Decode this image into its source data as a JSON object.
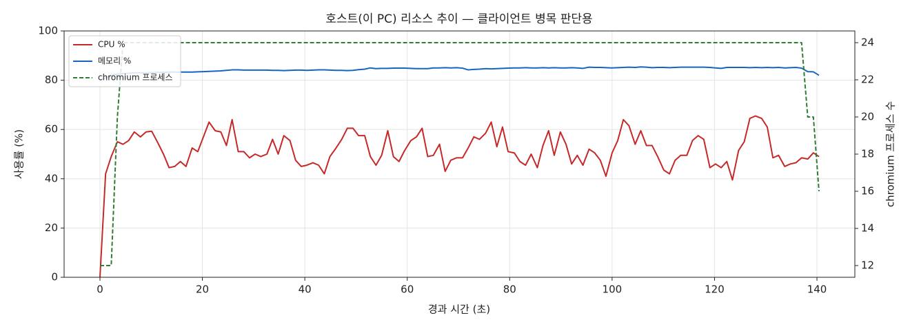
{
  "chart_data": {
    "type": "line",
    "title": "호스트(이 PC) 리소스 추이 — 클라이언트 병목 판단용",
    "xlabel": "경과 시간 (초)",
    "ylabel": "사용률 (%)",
    "y2label": "chromium 프로세스 수",
    "x": [
      0,
      1.1,
      2.2,
      3.4,
      4.5,
      5.6,
      6.7,
      7.9,
      9,
      10.1,
      11.2,
      12.4,
      13.5,
      14.6,
      15.7,
      16.8,
      18,
      19.1,
      20.2,
      21.3,
      22.5,
      23.6,
      24.7,
      25.8,
      27,
      28.1,
      29.2,
      30.3,
      31.4,
      32.6,
      33.7,
      34.8,
      35.9,
      37.1,
      38.2,
      39.3,
      40.4,
      41.6,
      42.7,
      43.8,
      44.9,
      46.1,
      47.2,
      48.3,
      49.4,
      50.5,
      51.7,
      52.8,
      53.9,
      55,
      56.2,
      57.3,
      58.4,
      59.5,
      60.7,
      61.8,
      62.9,
      64,
      65.1,
      66.3,
      67.4,
      68.5,
      69.6,
      70.8,
      71.9,
      73,
      74.1,
      75.3,
      76.4,
      77.5,
      78.6,
      79.7,
      80.9,
      82,
      83.1,
      84.2,
      85.4,
      86.5,
      87.6,
      88.7,
      89.9,
      91,
      92.1,
      93.2,
      94.3,
      95.5,
      96.6,
      97.7,
      98.8,
      100,
      101.1,
      102.2,
      103.3,
      104.5,
      105.6,
      106.7,
      107.8,
      108.9,
      110.1,
      111.2,
      112.3,
      113.4,
      114.6,
      115.7,
      116.8,
      117.9,
      119.1,
      120.2,
      121.3,
      122.4,
      123.5,
      124.7,
      125.8,
      126.9,
      128,
      129.2,
      130.3,
      131.4,
      132.5,
      133.7,
      134.8,
      135.9,
      137,
      138.2,
      139.3,
      140.4
    ],
    "series": [
      {
        "name": "CPU %",
        "color": "#c62828",
        "values": [
          0,
          42,
          49,
          55,
          54,
          55.5,
          59,
          57,
          59,
          59.3,
          55,
          50,
          44.5,
          45,
          47,
          45,
          52.5,
          51,
          57,
          63,
          59.5,
          59,
          53.5,
          64,
          51,
          51,
          48.5,
          50,
          49,
          50,
          56,
          50,
          57.5,
          55.5,
          47.5,
          45,
          45.5,
          46.5,
          45.5,
          42,
          49,
          52.5,
          56,
          60.5,
          60.5,
          57.5,
          57.5,
          49,
          45.5,
          49.5,
          59.5,
          49,
          47,
          51.5,
          55.5,
          57,
          60.5,
          49,
          49.5,
          54,
          43,
          47.5,
          48.5,
          48.5,
          52.5,
          57,
          56,
          58.5,
          63,
          53,
          61,
          51,
          50.5,
          47,
          45.5,
          50,
          44.5,
          53.5,
          59.5,
          49.5,
          59,
          54,
          46,
          49.5,
          45.5,
          52,
          50.5,
          47.5,
          41,
          50.5,
          55.5,
          64,
          61.5,
          54,
          59.5,
          53.5,
          53.5,
          49,
          43.5,
          42,
          47.5,
          49.5,
          49.5,
          55.5,
          57.5,
          56,
          44.5,
          46,
          44.5,
          47,
          39.5,
          51.5,
          55,
          64.5,
          65.5,
          64.5,
          61,
          48.5,
          49.5,
          45,
          46,
          46.5,
          48.5,
          48,
          50.5,
          49
        ]
      },
      {
        "name": "메모리 %",
        "color": "#1565c0",
        "values": [
          80,
          81,
          82,
          82.5,
          82.7,
          82.8,
          83,
          83,
          83,
          83.1,
          83.2,
          83.2,
          83.3,
          83.3,
          83.3,
          83.3,
          83.3,
          83.4,
          83.5,
          83.6,
          83.7,
          83.8,
          84,
          84.2,
          84.2,
          84.1,
          84.1,
          84.1,
          84.1,
          84.1,
          84,
          84,
          83.9,
          84,
          84.1,
          84.1,
          84,
          84.1,
          84.2,
          84.2,
          84.1,
          84,
          84,
          83.9,
          84,
          84.3,
          84.5,
          85,
          84.7,
          84.8,
          84.8,
          84.9,
          84.9,
          84.9,
          84.8,
          84.7,
          84.7,
          84.7,
          85,
          85,
          85.1,
          85,
          85.1,
          84.9,
          84.2,
          84.4,
          84.5,
          84.7,
          84.6,
          84.7,
          84.8,
          84.9,
          85,
          85,
          85.1,
          85,
          85,
          85.1,
          85,
          85.1,
          85,
          85,
          85.1,
          85,
          84.8,
          85.3,
          85.2,
          85.2,
          85.1,
          85,
          85.1,
          85.2,
          85.3,
          85.2,
          85.4,
          85.3,
          85.1,
          85.2,
          85.2,
          85.1,
          85.2,
          85.3,
          85.3,
          85.3,
          85.3,
          85.3,
          85.2,
          85,
          84.8,
          85.2,
          85.2,
          85.2,
          85.2,
          85.1,
          85.2,
          85.1,
          85.2,
          85.1,
          85.2,
          85,
          85.1,
          85.2,
          84.9,
          83.5,
          83.4,
          82
        ]
      },
      {
        "name": "chromium 프로세스",
        "color": "#2e7d32",
        "axis": "y2",
        "dashed": true,
        "values": [
          12,
          12,
          12,
          20,
          24,
          24,
          24,
          24,
          24,
          24,
          24,
          24,
          24,
          24,
          24,
          24,
          24,
          24,
          24,
          24,
          24,
          24,
          24,
          24,
          24,
          24,
          24,
          24,
          24,
          24,
          24,
          24,
          24,
          24,
          24,
          24,
          24,
          24,
          24,
          24,
          24,
          24,
          24,
          24,
          24,
          24,
          24,
          24,
          24,
          24,
          24,
          24,
          24,
          24,
          24,
          24,
          24,
          24,
          24,
          24,
          24,
          24,
          24,
          24,
          24,
          24,
          24,
          24,
          24,
          24,
          24,
          24,
          24,
          24,
          24,
          24,
          24,
          24,
          24,
          24,
          24,
          24,
          24,
          24,
          24,
          24,
          24,
          24,
          24,
          24,
          24,
          24,
          24,
          24,
          24,
          24,
          24,
          24,
          24,
          24,
          24,
          24,
          24,
          24,
          24,
          24,
          24,
          24,
          24,
          24,
          24,
          24,
          24,
          24,
          24,
          24,
          24,
          24,
          24,
          24,
          24,
          24,
          24,
          20,
          20,
          16
        ]
      }
    ],
    "xlim": [
      -7,
      147.4
    ],
    "xticks": [
      0,
      20,
      40,
      60,
      80,
      100,
      120,
      140
    ],
    "ylim": [
      0,
      100
    ],
    "yticks": [
      0,
      20,
      40,
      60,
      80,
      100
    ],
    "y2lim": [
      11.37,
      24.63
    ],
    "y2ticks": [
      12,
      14,
      16,
      18,
      20,
      22,
      24
    ],
    "grid": true,
    "legend": "upper left"
  }
}
